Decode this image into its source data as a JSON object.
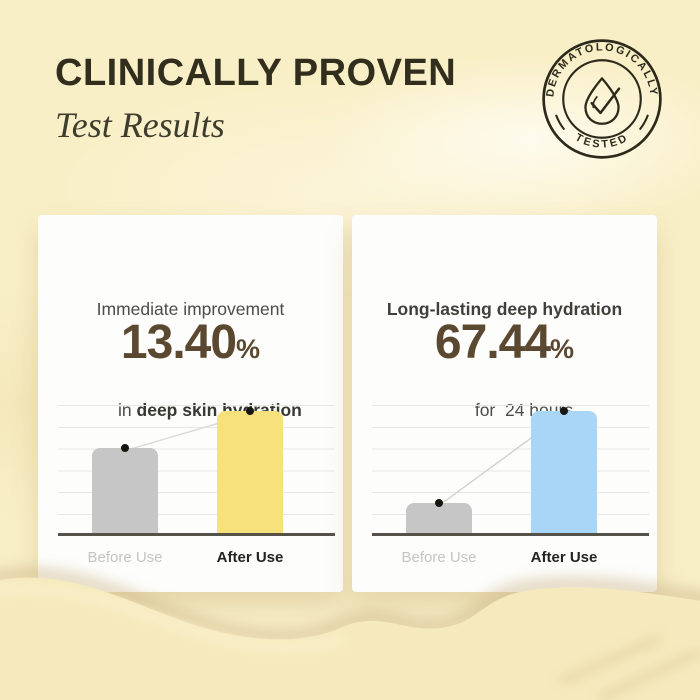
{
  "header": {
    "title": "CLINICALLY PROVEN",
    "subtitle": "Test Results"
  },
  "badge": {
    "arc_top": "DERMATOLOGICALLY",
    "arc_bottom": "TESTED",
    "icon": "droplet-check-icon",
    "color": "#2c2a1b"
  },
  "cards": [
    {
      "heading": {
        "line1": "Immediate improvement",
        "line2_normal": "in ",
        "line2_bold": "deep skin hydration"
      },
      "value": "13.40",
      "unit": "%",
      "before_label": "Before Use",
      "after_label": "After Use"
    },
    {
      "heading": {
        "line1": "Long-lasting deep hydration",
        "line2_normal": "for  24 hours",
        "line2_bold": ""
      },
      "value": "67.44",
      "unit": "%",
      "before_label": "Before Use",
      "after_label": "After Use"
    }
  ],
  "chart_data": [
    {
      "type": "bar",
      "title": "Immediate improvement in deep skin hydration",
      "annotation": "13.40%",
      "categories": [
        "Before Use",
        "After Use"
      ],
      "values": [
        70,
        100
      ],
      "value_note": "relative bar heights, After Use = 100",
      "colors": [
        "#c6c6c6",
        "#f6e17c"
      ],
      "grid": true,
      "legend": "none"
    },
    {
      "type": "bar",
      "title": "Long-lasting deep hydration for 24 hours",
      "annotation": "67.44%",
      "categories": [
        "Before Use",
        "After Use"
      ],
      "values": [
        25,
        100
      ],
      "value_note": "relative bar heights, After Use = 100",
      "colors": [
        "#c6c6c6",
        "#a9d6f6"
      ],
      "grid": true,
      "legend": "none"
    }
  ],
  "palette": {
    "background": "#f9efc7",
    "title_color": "#312e1d",
    "number_color": "#5a4830",
    "gridline": "#e7e7e3",
    "axis": "#55524a",
    "dot": "#17160f"
  }
}
